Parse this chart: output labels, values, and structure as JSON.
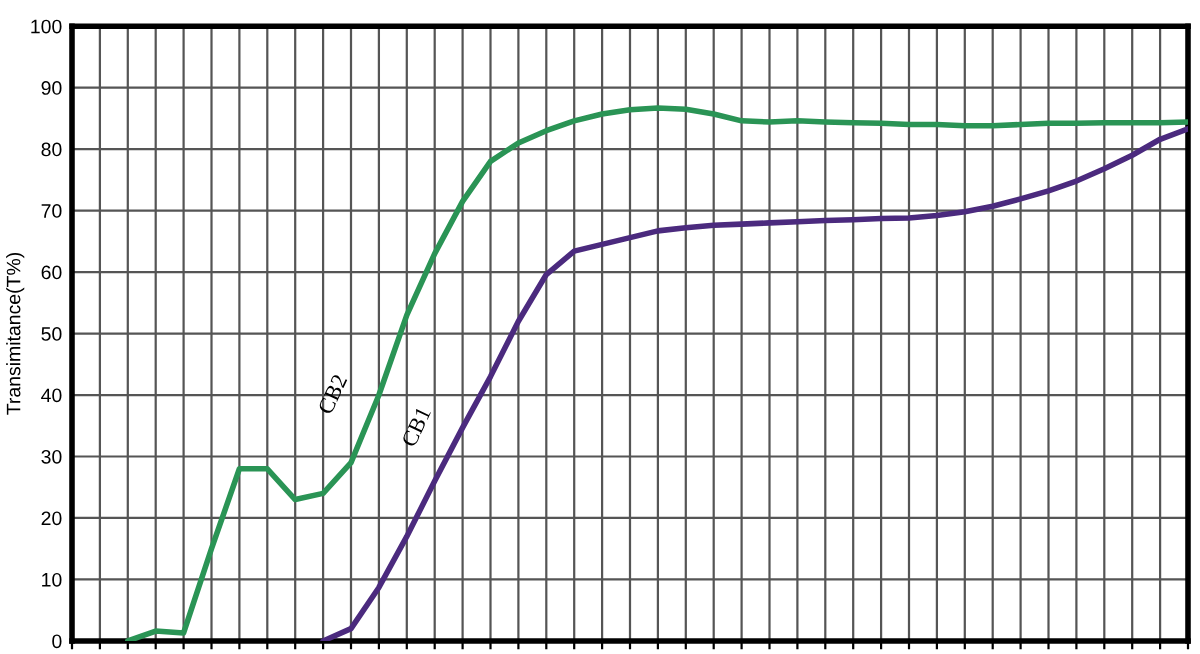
{
  "chart_data": {
    "type": "line",
    "ylabel": "Transimitance(T%)",
    "categories": [
      null,
      null,
      null,
      null,
      null,
      null,
      null,
      null,
      null,
      null,
      null,
      null,
      null,
      null,
      null,
      null,
      null,
      null,
      null,
      null,
      null,
      null,
      null,
      null,
      null,
      null,
      null,
      null,
      null,
      null,
      null,
      null,
      null,
      null,
      null,
      null,
      null,
      null,
      null,
      null,
      null
    ],
    "series": [
      {
        "name": "CB2",
        "color": "#2a9455",
        "values": [
          null,
          null,
          0,
          1.6,
          1.3,
          15,
          28,
          28,
          23,
          24,
          29,
          40,
          53,
          63,
          71.5,
          78,
          81,
          83,
          84.6,
          85.7,
          86.4,
          86.7,
          86.5,
          85.7,
          84.6,
          84.4,
          84.6,
          84.4,
          84.3,
          84.2,
          84,
          84,
          83.8,
          83.8,
          84,
          84.2,
          84.2,
          84.3,
          84.3,
          84.3,
          84.4
        ]
      },
      {
        "name": "CB1",
        "color": "#4b2a7e",
        "values": [
          null,
          null,
          null,
          null,
          null,
          null,
          null,
          null,
          null,
          0,
          2,
          8.7,
          17,
          26,
          34.7,
          43,
          52,
          59.6,
          63.4,
          64.5,
          65.6,
          66.7,
          67.2,
          67.6,
          67.8,
          68,
          68.2,
          68.4,
          68.5,
          68.7,
          68.8,
          69.2,
          69.8,
          70.7,
          71.9,
          73.2,
          74.8,
          76.8,
          79,
          81.6,
          83.3
        ]
      }
    ],
    "ylim": [
      0,
      100
    ],
    "yticks": [
      0,
      10,
      20,
      30,
      40,
      50,
      60,
      70,
      80,
      90,
      100
    ],
    "grid": true,
    "tick_labels": "y",
    "legend": false
  }
}
